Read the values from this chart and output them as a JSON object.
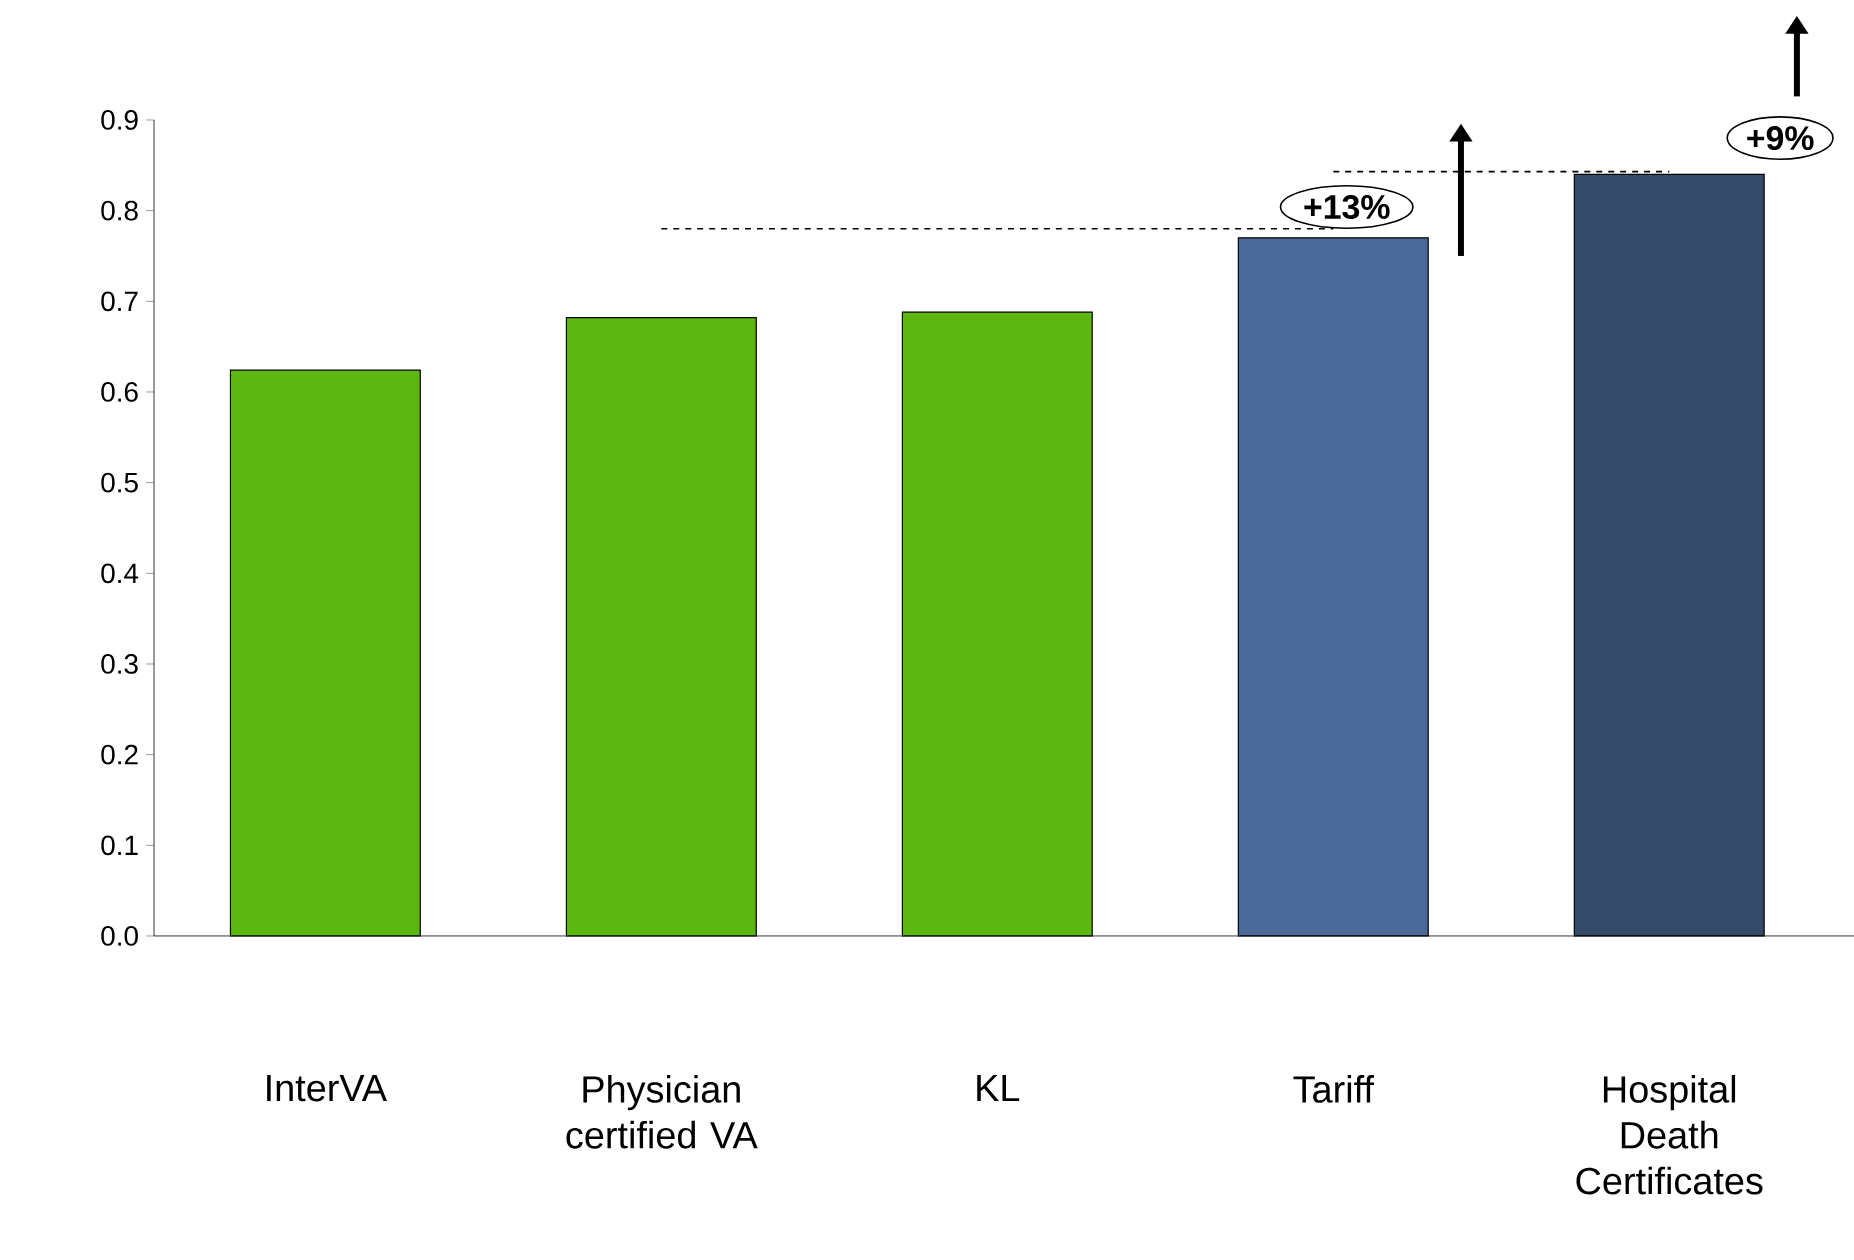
{
  "chart_data": {
    "type": "bar",
    "categories": [
      "InterVA",
      "Physician certified VA",
      "KL",
      "Tariff",
      "Hospital Death Certificates"
    ],
    "series": [
      {
        "colors": [
          "#5cb811",
          "#5cb811",
          "#5cb811",
          "#4a6a9a",
          "#364b6b"
        ],
        "values": [
          0.624,
          0.682,
          0.688,
          0.77,
          0.84
        ]
      },
      {
        "type": "line",
        "x": [
          "Physician certified VA",
          "Tariff"
        ],
        "values": [
          0.78,
          0.78
        ],
        "color": "#000000",
        "line_style": "dashed"
      },
      {
        "type": "line",
        "x": [
          "Tariff",
          "Hospital Death Certificates"
        ],
        "values": [
          0.843,
          0.843
        ],
        "color": "#000000",
        "line_style": "dashed"
      }
    ],
    "ylim": [
      0,
      0.9
    ],
    "yticks": [
      {
        "value": 0,
        "label": "0.0"
      },
      {
        "value": 0.1,
        "label": "0.1"
      },
      {
        "value": 0.2,
        "label": "0.2"
      },
      {
        "value": 0.3,
        "label": "0.3"
      },
      {
        "value": 0.4,
        "label": "0.4"
      },
      {
        "value": 0.5,
        "label": "0.5"
      },
      {
        "value": 0.6,
        "label": "0.6"
      },
      {
        "value": 0.7,
        "label": "0.7"
      },
      {
        "value": 0.8,
        "label": "0.8"
      },
      {
        "value": 0.9,
        "label": "0.9"
      }
    ],
    "annotations": [
      "+13%",
      "+9%"
    ]
  }
}
